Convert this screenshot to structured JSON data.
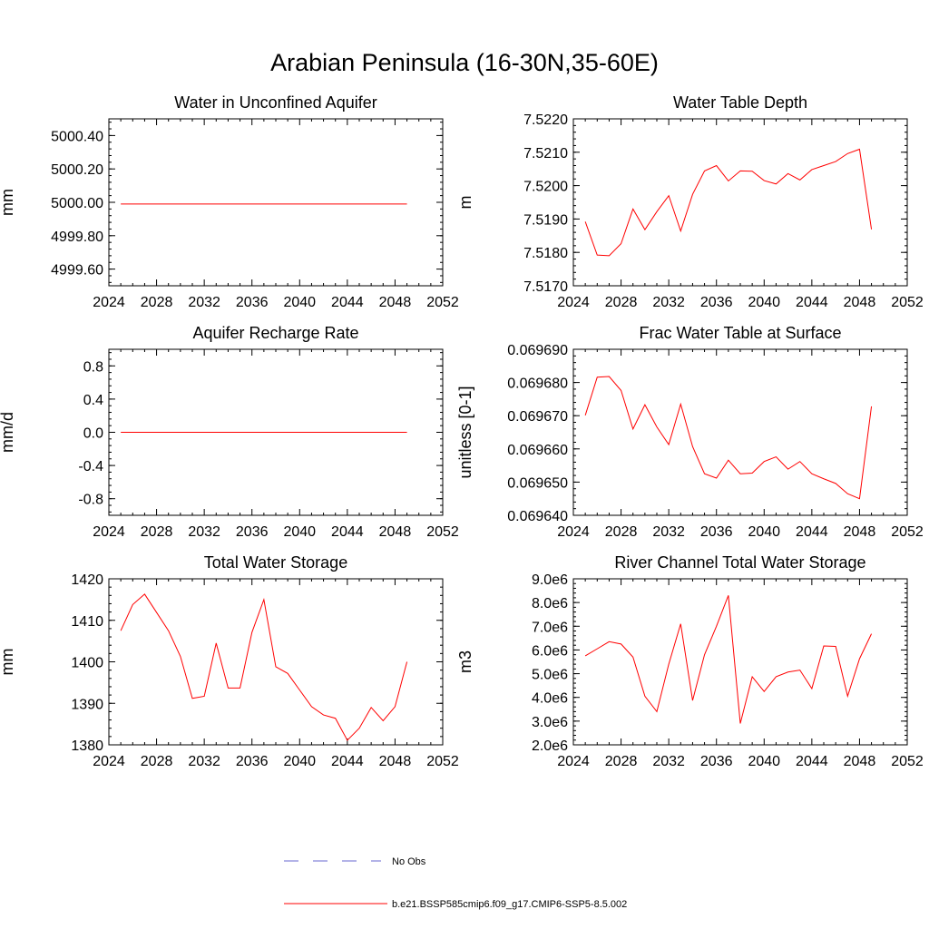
{
  "page": {
    "title": "Arabian Peninsula (16-30N,35-60E)"
  },
  "legend": {
    "entries": [
      {
        "label": "No Obs",
        "style": "dashed",
        "color": "#6a6ad0"
      },
      {
        "label": "b.e21.BSSP585cmip6.f09_g17.CMIP6-SSP5-8.5.002",
        "style": "solid",
        "color": "#ff0000"
      }
    ]
  },
  "chart_data": [
    {
      "type": "line",
      "title": "Water in Unconfined Aquifer",
      "ylabel": "mm",
      "xlim": [
        2024,
        2052
      ],
      "ylim": [
        4999.5,
        5000.5
      ],
      "xticks": [
        2024,
        2028,
        2032,
        2036,
        2040,
        2044,
        2048,
        2052
      ],
      "yticks": [
        4999.6,
        4999.8,
        5000.0,
        5000.2,
        5000.4
      ],
      "ytick_labels": [
        "4999.60",
        "4999.80",
        "5000.00",
        "5000.20",
        "5000.40"
      ],
      "series": [
        {
          "color": "#ff0000",
          "x": [
            2025,
            2026,
            2027,
            2028,
            2029,
            2030,
            2031,
            2032,
            2033,
            2034,
            2035,
            2036,
            2037,
            2038,
            2039,
            2040,
            2041,
            2042,
            2043,
            2044,
            2045,
            2046,
            2047,
            2048,
            2049
          ],
          "y": [
            4999.99,
            4999.99,
            4999.99,
            4999.99,
            4999.99,
            4999.99,
            4999.99,
            4999.99,
            4999.99,
            4999.99,
            4999.99,
            4999.99,
            4999.99,
            4999.99,
            4999.99,
            4999.99,
            4999.99,
            4999.99,
            4999.99,
            4999.99,
            4999.99,
            4999.99,
            4999.99,
            4999.99,
            4999.99
          ]
        }
      ]
    },
    {
      "type": "line",
      "title": "Water Table Depth",
      "ylabel": "m",
      "xlim": [
        2024,
        2052
      ],
      "ylim": [
        7.517,
        7.522
      ],
      "xticks": [
        2024,
        2028,
        2032,
        2036,
        2040,
        2044,
        2048,
        2052
      ],
      "yticks": [
        7.517,
        7.518,
        7.519,
        7.52,
        7.521,
        7.522
      ],
      "ytick_labels": [
        "7.5170",
        "7.5180",
        "7.5190",
        "7.5200",
        "7.5210",
        "7.5220"
      ],
      "series": [
        {
          "color": "#ff0000",
          "x": [
            2025,
            2026,
            2027,
            2028,
            2029,
            2030,
            2031,
            2032,
            2033,
            2034,
            2035,
            2036,
            2037,
            2038,
            2039,
            2040,
            2041,
            2042,
            2043,
            2044,
            2045,
            2046,
            2047,
            2048,
            2049
          ],
          "y": [
            7.51892,
            7.51792,
            7.5179,
            7.51826,
            7.5193,
            7.51868,
            7.51922,
            7.5197,
            7.51864,
            7.51974,
            7.52044,
            7.5206,
            7.52014,
            7.52044,
            7.52043,
            7.52015,
            7.52005,
            7.52036,
            7.52017,
            7.52048,
            7.5206,
            7.52072,
            7.52096,
            7.52109,
            7.51869
          ]
        }
      ]
    },
    {
      "type": "line",
      "title": "Aquifer Recharge Rate",
      "ylabel": "mm/d",
      "xlim": [
        2024,
        2052
      ],
      "ylim": [
        -1.0,
        1.0
      ],
      "xticks": [
        2024,
        2028,
        2032,
        2036,
        2040,
        2044,
        2048,
        2052
      ],
      "yticks": [
        -0.8,
        -0.4,
        0.0,
        0.4,
        0.8
      ],
      "ytick_labels": [
        "-0.8",
        "-0.4",
        "0.0",
        "0.4",
        "0.8"
      ],
      "series": [
        {
          "color": "#ff0000",
          "x": [
            2025,
            2026,
            2027,
            2028,
            2029,
            2030,
            2031,
            2032,
            2033,
            2034,
            2035,
            2036,
            2037,
            2038,
            2039,
            2040,
            2041,
            2042,
            2043,
            2044,
            2045,
            2046,
            2047,
            2048,
            2049
          ],
          "y": [
            0,
            0,
            0,
            0,
            0,
            0,
            0,
            0,
            0,
            0,
            0,
            0,
            0,
            0,
            0,
            0,
            0,
            0,
            0,
            0,
            0,
            0,
            0,
            0,
            0
          ]
        }
      ]
    },
    {
      "type": "line",
      "title": "Frac Water Table at Surface",
      "ylabel": "unitless [0-1]",
      "xlim": [
        2024,
        2052
      ],
      "ylim": [
        0.06964,
        0.06969
      ],
      "xticks": [
        2024,
        2028,
        2032,
        2036,
        2040,
        2044,
        2048,
        2052
      ],
      "yticks": [
        0.06964,
        0.06965,
        0.06966,
        0.06967,
        0.06968,
        0.06969
      ],
      "ytick_labels": [
        "0.069640",
        "0.069650",
        "0.069660",
        "0.069670",
        "0.069680",
        "0.069690"
      ],
      "series": [
        {
          "color": "#ff0000",
          "x": [
            2025,
            2026,
            2027,
            2028,
            2029,
            2030,
            2031,
            2032,
            2033,
            2034,
            2035,
            2036,
            2037,
            2038,
            2039,
            2040,
            2041,
            2042,
            2043,
            2044,
            2045,
            2046,
            2047,
            2048,
            2049
          ],
          "y": [
            0.0696701,
            0.0696816,
            0.0696818,
            0.0696776,
            0.069666,
            0.0696733,
            0.0696666,
            0.0696613,
            0.0696735,
            0.0696607,
            0.0696525,
            0.0696512,
            0.0696566,
            0.0696525,
            0.0696527,
            0.0696562,
            0.0696576,
            0.0696539,
            0.0696562,
            0.0696525,
            0.069651,
            0.0696496,
            0.0696465,
            0.069645,
            0.0696728
          ]
        }
      ]
    },
    {
      "type": "line",
      "title": "Total Water Storage",
      "ylabel": "mm",
      "xlim": [
        2024,
        2052
      ],
      "ylim": [
        1380,
        1420
      ],
      "xticks": [
        2024,
        2028,
        2032,
        2036,
        2040,
        2044,
        2048,
        2052
      ],
      "yticks": [
        1380,
        1390,
        1400,
        1410,
        1420
      ],
      "ytick_labels": [
        "1380",
        "1390",
        "1400",
        "1410",
        "1420"
      ],
      "series": [
        {
          "color": "#ff0000",
          "x": [
            2025,
            2026,
            2027,
            2028,
            2029,
            2030,
            2031,
            2032,
            2033,
            2034,
            2035,
            2036,
            2037,
            2038,
            2039,
            2040,
            2041,
            2042,
            2043,
            2044,
            2045,
            2046,
            2047,
            2048,
            2049
          ],
          "y": [
            1407.5,
            1413.8,
            1416.3,
            1411.9,
            1407.5,
            1401.3,
            1391.2,
            1391.7,
            1404.5,
            1393.7,
            1393.7,
            1407.1,
            1415.0,
            1398.8,
            1397.2,
            1393.2,
            1389.2,
            1387.2,
            1386.4,
            1381.1,
            1384.0,
            1389.0,
            1385.8,
            1389.2,
            1400.0
          ]
        }
      ]
    },
    {
      "type": "line",
      "title": "River Channel Total Water Storage",
      "ylabel": "m3",
      "xlim": [
        2024,
        2052
      ],
      "ylim": [
        2000000,
        9000000
      ],
      "xticks": [
        2024,
        2028,
        2032,
        2036,
        2040,
        2044,
        2048,
        2052
      ],
      "yticks": [
        2000000,
        3000000,
        4000000,
        5000000,
        6000000,
        7000000,
        8000000,
        9000000
      ],
      "ytick_labels": [
        "2.0e6",
        "3.0e6",
        "4.0e6",
        "5.0e6",
        "6.0e6",
        "7.0e6",
        "8.0e6",
        "9.0e6"
      ],
      "series": [
        {
          "color": "#ff0000",
          "x": [
            2025,
            2026,
            2027,
            2028,
            2029,
            2030,
            2031,
            2032,
            2033,
            2034,
            2035,
            2036,
            2037,
            2038,
            2039,
            2040,
            2041,
            2042,
            2043,
            2044,
            2045,
            2046,
            2047,
            2048,
            2049
          ],
          "y": [
            5750000,
            6050000,
            6350000,
            6250000,
            5700000,
            4050000,
            3400000,
            5400000,
            7100000,
            3870000,
            5800000,
            7000000,
            8300000,
            2900000,
            4870000,
            4250000,
            4870000,
            5070000,
            5150000,
            4370000,
            6170000,
            6150000,
            4050000,
            5630000,
            6680000
          ]
        }
      ]
    }
  ]
}
